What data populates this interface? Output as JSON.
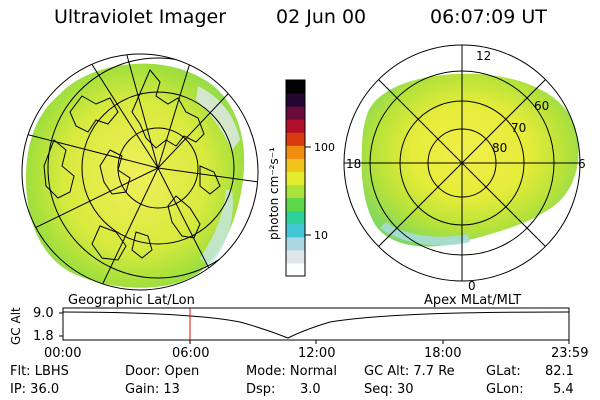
{
  "header": {
    "instrument": "Ultraviolet Imager",
    "date": "02 Jun 00",
    "time": "06:07:09 UT"
  },
  "colorbar": {
    "label": "photon cm⁻²s⁻¹",
    "ticks": [
      "100",
      "10"
    ],
    "colors": [
      "#ffffff",
      "#dfe6ea",
      "#a9d7e2",
      "#41c7d6",
      "#2fcf9a",
      "#5ed64a",
      "#a8e23a",
      "#e4ec2e",
      "#f2c31b",
      "#f08d10",
      "#d83a12",
      "#b2102a",
      "#6a0a3c",
      "#24062e",
      "#000000"
    ]
  },
  "polar_labels": {
    "top": "12",
    "left": "18",
    "right": "6",
    "bottom": "0",
    "rings": [
      "60",
      "70",
      "80"
    ]
  },
  "timeline": {
    "ylabel": "GC Alt",
    "ticks_y": [
      "9.0",
      "1.8"
    ],
    "left_label": "Geographic Lat/Lon",
    "right_label": "Apex MLat/MLT",
    "times": [
      "00:00",
      "06:00",
      "12:00",
      "18:00",
      "23:59"
    ],
    "current_time_marker": "06:07:09",
    "accent_color": "#e01010"
  },
  "info": {
    "flt": "Flt: LBHS",
    "ip": "IP: 36.0",
    "door": "Door: Open",
    "gain": "Gain: 13",
    "mode": "Mode: Normal",
    "dsp_label": "Dsp:",
    "dsp_value": "3.0",
    "gcalt": "GC Alt: 7.7 Re",
    "seq": "Seq: 30",
    "glat_label": "GLat:",
    "glat_value": "82.1",
    "glon_label": "GLon:",
    "glon_value": "5.4"
  }
}
